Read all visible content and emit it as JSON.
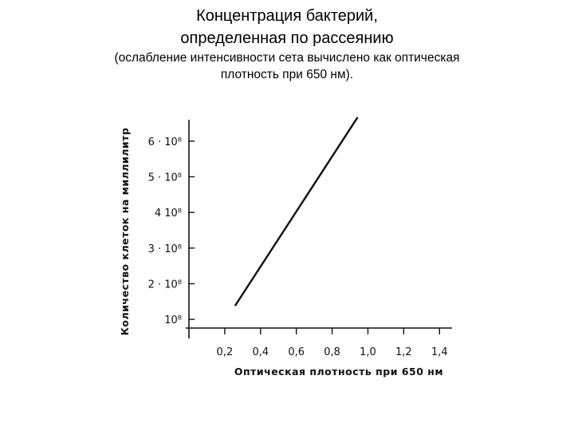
{
  "slide": {
    "title_line1": "Концентрация бактерий,",
    "title_line2": "определенная по рассеянию",
    "subtitle_line1": "(ослабление интенсивности сета вычислено как оптическая",
    "subtitle_line2": "плотность при 650 нм)."
  },
  "chart_data": {
    "type": "line",
    "title": "",
    "xlabel": "Оптическая плотность при 650 нм",
    "ylabel": "Количество клеток на миллилитр",
    "x_ticks": [
      0.2,
      0.4,
      0.6,
      0.8,
      1.0,
      1.2,
      1.4
    ],
    "x_tick_labels": [
      "0,2",
      "0,4",
      "0,6",
      "0,8",
      "1,0",
      "1,2",
      "1,4"
    ],
    "xlim": [
      0.0,
      1.47
    ],
    "y_ticks": [
      100000000.0,
      200000000.0,
      300000000.0,
      400000000.0,
      500000000.0,
      600000000.0
    ],
    "y_tick_labels": [
      "10⁸",
      "2 · 10⁸",
      "3 · 10⁸",
      "4 10⁸",
      "5 · 10⁸",
      "6 · 10⁸"
    ],
    "ylim": [
      60000000.0,
      660000000.0
    ],
    "grid": false,
    "series": [
      {
        "x": [
          0.26,
          0.94
        ],
        "y": [
          140000000.0,
          665000000.0
        ]
      }
    ]
  },
  "colors": {
    "ink": "#111111",
    "background": "#ffffff"
  }
}
